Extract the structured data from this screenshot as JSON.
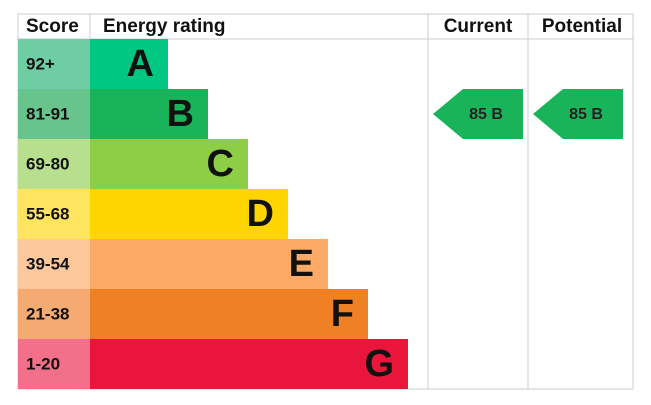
{
  "header": {
    "score": "Score",
    "rating": "Energy rating",
    "current": "Current",
    "potential": "Potential"
  },
  "rows": [
    {
      "score": "92+",
      "letter": "A"
    },
    {
      "score": "81-91",
      "letter": "B"
    },
    {
      "score": "69-80",
      "letter": "C"
    },
    {
      "score": "55-68",
      "letter": "D"
    },
    {
      "score": "39-54",
      "letter": "E"
    },
    {
      "score": "21-38",
      "letter": "F"
    },
    {
      "score": "1-20",
      "letter": "G"
    }
  ],
  "current": "85 B",
  "potential": "85 B"
}
